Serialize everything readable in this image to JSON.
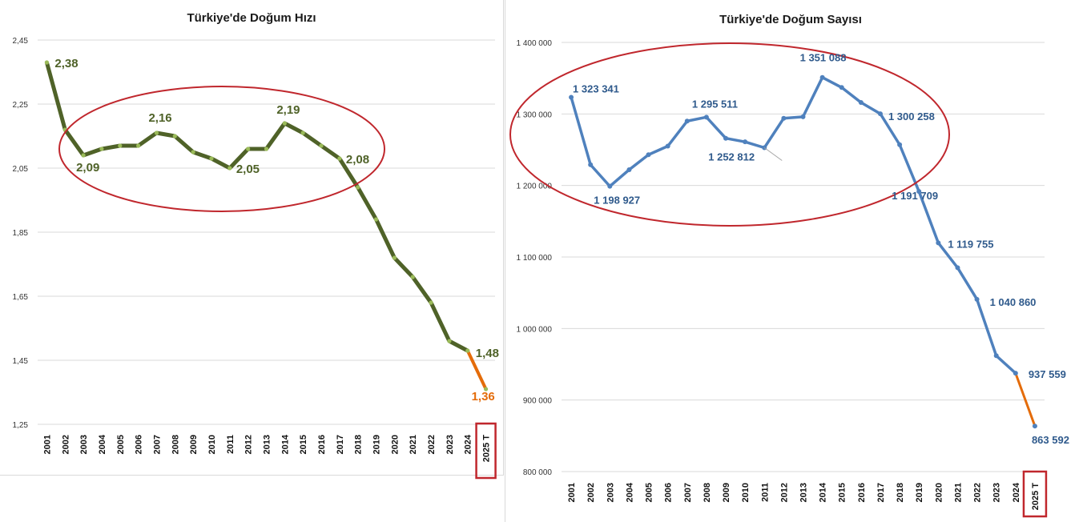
{
  "chart_data": [
    {
      "type": "line",
      "title": "Türkiye'de Doğum Hızı",
      "categories": [
        "2001",
        "2002",
        "2003",
        "2004",
        "2005",
        "2006",
        "2007",
        "2008",
        "2009",
        "2010",
        "2011",
        "2012",
        "2013",
        "2014",
        "2015",
        "2016",
        "2017",
        "2018",
        "2019",
        "2020",
        "2021",
        "2022",
        "2023",
        "2024",
        "2025 T"
      ],
      "series": [
        {
          "name": "Doğum Hızı",
          "color": "#4f6228",
          "marker_color": "#9bbb59",
          "values": [
            2.38,
            2.17,
            2.09,
            2.11,
            2.12,
            2.12,
            2.16,
            2.15,
            2.1,
            2.08,
            2.05,
            2.11,
            2.11,
            2.19,
            2.16,
            2.12,
            2.08,
            1.99,
            1.89,
            1.77,
            1.71,
            1.63,
            1.51,
            1.48,
            1.36
          ]
        }
      ],
      "forecast_color": "#e46c0a",
      "ylim": [
        1.25,
        2.45
      ],
      "yticks": [
        "1,25",
        "1,45",
        "1,65",
        "1,85",
        "2,05",
        "2,25",
        "2,45"
      ],
      "ytick_values": [
        1.25,
        1.45,
        1.65,
        1.85,
        2.05,
        2.25,
        2.45
      ],
      "data_labels": [
        {
          "index": 0,
          "text": "2,38"
        },
        {
          "index": 2,
          "text": "2,09"
        },
        {
          "index": 6,
          "text": "2,16"
        },
        {
          "index": 10,
          "text": "2,05"
        },
        {
          "index": 13,
          "text": "2,19"
        },
        {
          "index": 16,
          "text": "2,08"
        },
        {
          "index": 23,
          "text": "1,48"
        },
        {
          "index": 24,
          "text": "1,36"
        }
      ],
      "annotation_color": "#c0272d"
    },
    {
      "type": "line",
      "title": "Türkiye'de  Doğum Sayısı",
      "categories": [
        "2001",
        "2002",
        "2003",
        "2004",
        "2005",
        "2006",
        "2007",
        "2008",
        "2009",
        "2010",
        "2011",
        "2012",
        "2013",
        "2014",
        "2015",
        "2016",
        "2017",
        "2018",
        "2019",
        "2020",
        "2021",
        "2022",
        "2023",
        "2024",
        "2025 T"
      ],
      "series": [
        {
          "name": "Doğum Sayısı",
          "color": "#4f81bd",
          "marker_color": "#4f81bd",
          "values": [
            1323341,
            1229000,
            1198927,
            1222000,
            1243000,
            1255000,
            1290000,
            1295511,
            1266000,
            1261000,
            1252812,
            1294000,
            1296000,
            1351088,
            1337000,
            1316000,
            1300258,
            1257000,
            1191709,
            1119755,
            1085000,
            1040860,
            962000,
            937559,
            863592
          ]
        }
      ],
      "forecast_color": "#e46c0a",
      "ylim": [
        800000,
        1400000
      ],
      "yticks": [
        "800 000",
        "900 000",
        "1 000 000",
        "1 100 000",
        "1 200 000",
        "1 300 000",
        "1 400 000"
      ],
      "ytick_values": [
        800000,
        900000,
        1000000,
        1100000,
        1200000,
        1300000,
        1400000
      ],
      "data_labels": [
        {
          "index": 0,
          "text": "1 323 341"
        },
        {
          "index": 2,
          "text": "1 198 927"
        },
        {
          "index": 7,
          "text": "1 295 511"
        },
        {
          "index": 10,
          "text": "1 252 812"
        },
        {
          "index": 13,
          "text": "1 351 088"
        },
        {
          "index": 16,
          "text": "1 300 258"
        },
        {
          "index": 18,
          "text": "1 191 709"
        },
        {
          "index": 19,
          "text": "1 119 755"
        },
        {
          "index": 21,
          "text": "1 040 860"
        },
        {
          "index": 23,
          "text": "937 559"
        },
        {
          "index": 24,
          "text": "863 592"
        }
      ],
      "annotation_color": "#c0272d"
    }
  ]
}
